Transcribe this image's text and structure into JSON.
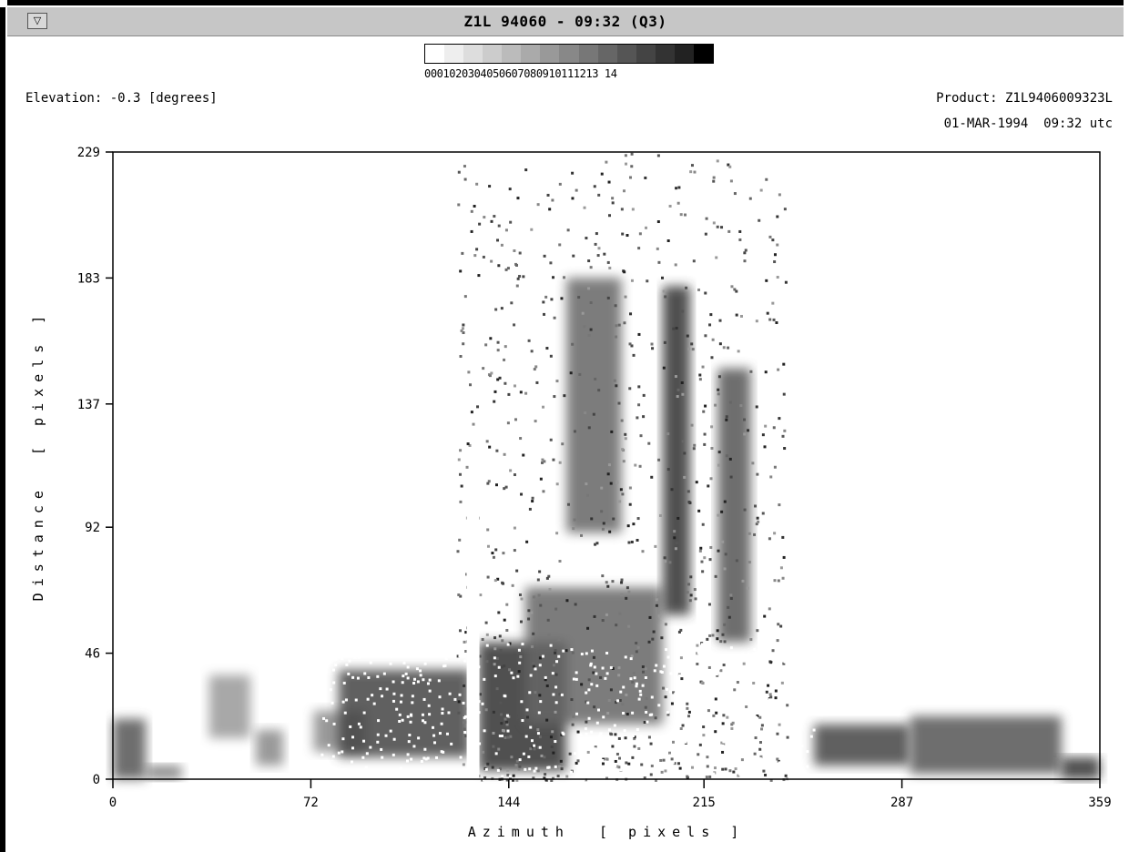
{
  "window": {
    "title": "Z1L 94060 - 09:32 (Q3)",
    "menu_button_glyph": "▽"
  },
  "header": {
    "elevation": "Elevation: -0.3 [degrees]",
    "product": "Product: Z1L9406009323L",
    "timestamp": "01-MAR-1994  09:32 utc"
  },
  "colorbar": {
    "labels": "0001020304050607080910111213 14",
    "colors": [
      "#ffffff",
      "#eeeeee",
      "#dddddd",
      "#cccccc",
      "#bbbbbb",
      "#aaaaaa",
      "#999999",
      "#888888",
      "#777777",
      "#666666",
      "#555555",
      "#444444",
      "#333333",
      "#222222",
      "#000000"
    ]
  },
  "chart_data": {
    "type": "heatmap",
    "xlabel": "Azimuth  [ pixels ]",
    "ylabel": "Distance  [ pixels ]",
    "xlim": [
      0,
      359
    ],
    "ylim": [
      0,
      229
    ],
    "xticks": [
      "0",
      "72",
      "144",
      "215",
      "287",
      "359"
    ],
    "yticks": [
      "0",
      "46",
      "92",
      "137",
      "183",
      "229"
    ],
    "colormap": "white-to-black grayscale, levels 00-14",
    "blank_column_azimuth": 131,
    "regions": [
      {
        "x": [
          0,
          12
        ],
        "y": [
          0,
          22
        ],
        "level": 10
      },
      {
        "x": [
          12,
          25
        ],
        "y": [
          0,
          5
        ],
        "level": 8
      },
      {
        "x": [
          35,
          50
        ],
        "y": [
          15,
          38
        ],
        "level": 6
      },
      {
        "x": [
          52,
          62
        ],
        "y": [
          5,
          18
        ],
        "level": 7
      },
      {
        "x": [
          73,
          92
        ],
        "y": [
          10,
          25
        ],
        "level": 7
      },
      {
        "x": [
          82,
          130
        ],
        "y": [
          8,
          40
        ],
        "level": 11
      },
      {
        "x": [
          133,
          165
        ],
        "y": [
          3,
          50
        ],
        "level": 12
      },
      {
        "x": [
          150,
          200
        ],
        "y": [
          20,
          70
        ],
        "level": 9
      },
      {
        "x": [
          165,
          185
        ],
        "y": [
          90,
          183
        ],
        "level": 9
      },
      {
        "x": [
          200,
          210
        ],
        "y": [
          60,
          180
        ],
        "level": 12
      },
      {
        "x": [
          220,
          232
        ],
        "y": [
          50,
          150
        ],
        "level": 10
      },
      {
        "x": [
          255,
          290
        ],
        "y": [
          5,
          20
        ],
        "level": 11
      },
      {
        "x": [
          290,
          345
        ],
        "y": [
          2,
          23
        ],
        "level": 10
      },
      {
        "x": [
          345,
          359
        ],
        "y": [
          0,
          8
        ],
        "level": 12
      }
    ]
  }
}
